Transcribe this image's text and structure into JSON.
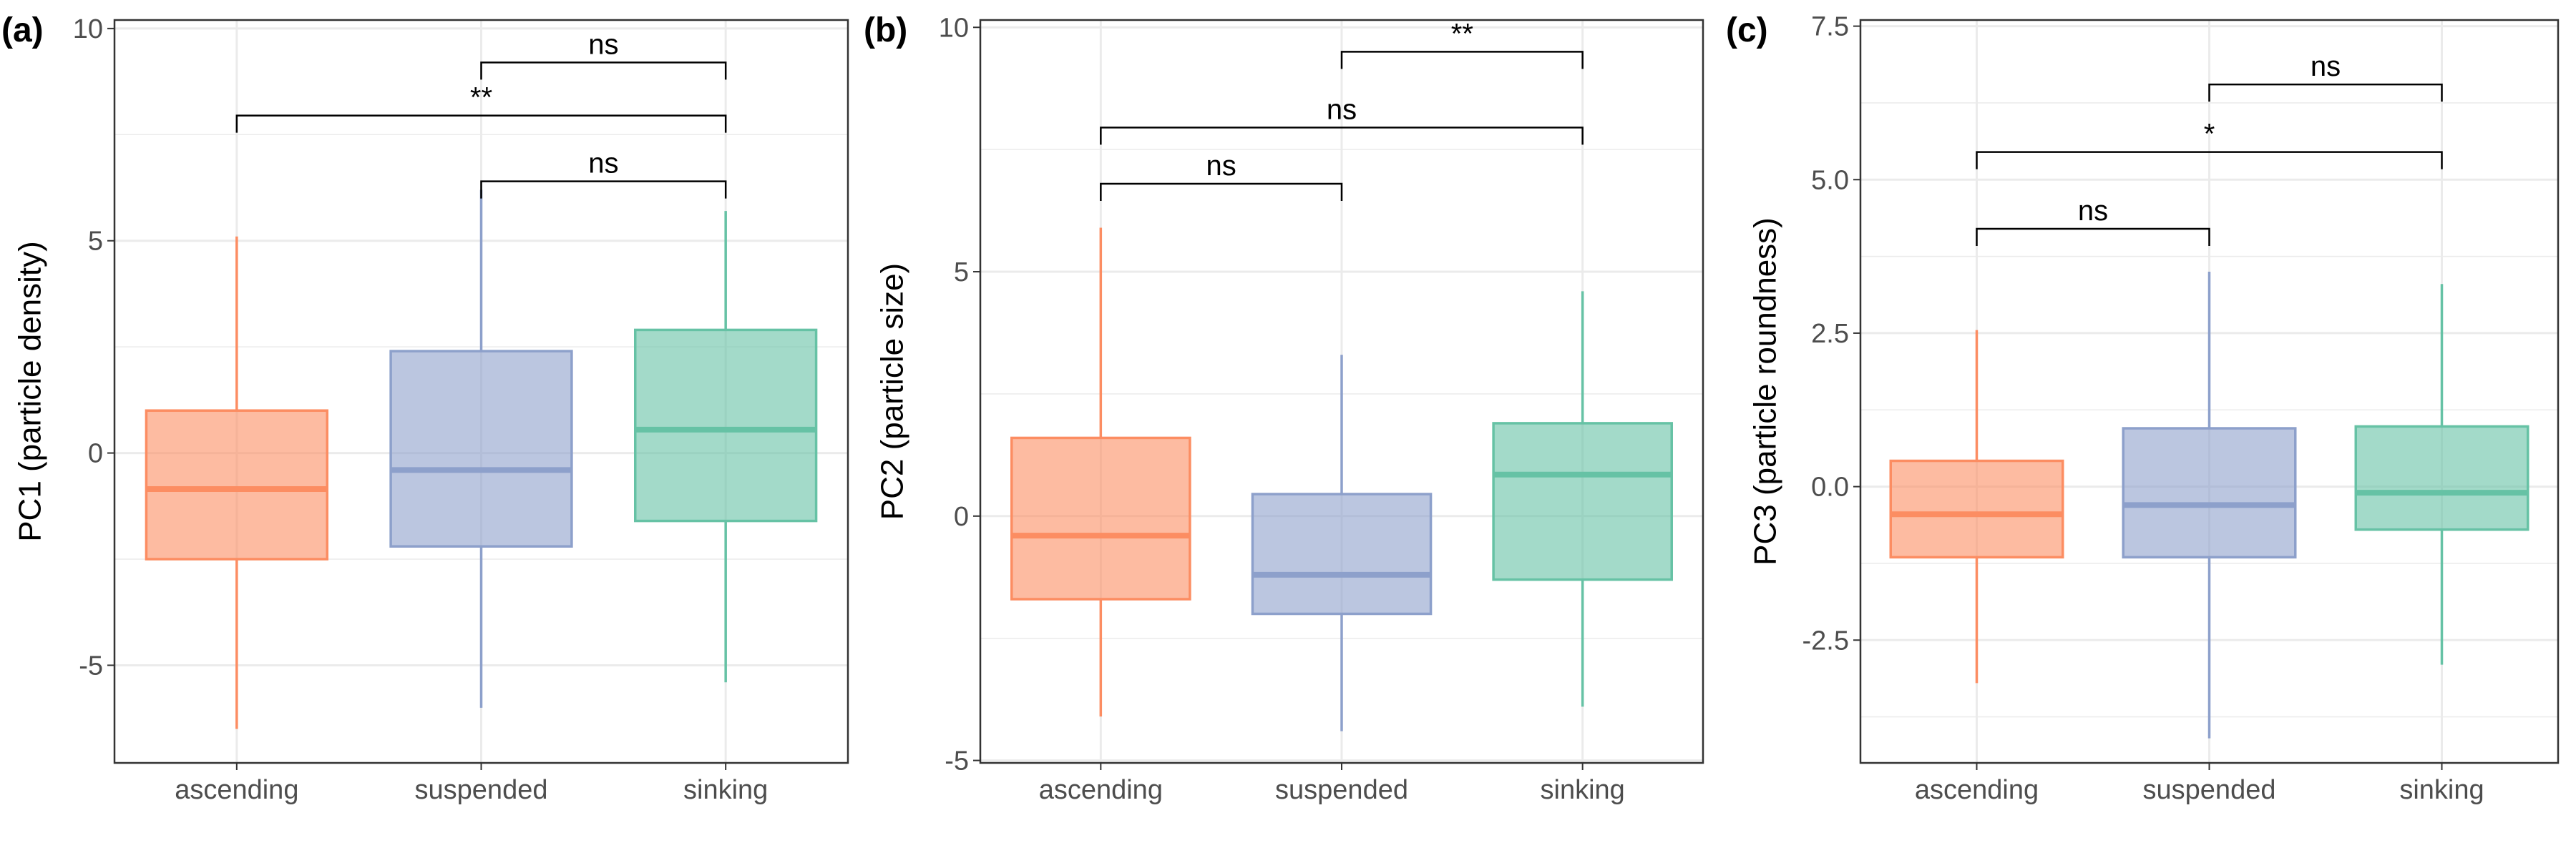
{
  "colors": {
    "ascending": "#FC8D62",
    "suspended": "#8DA0CB",
    "sinking": "#66C2A5",
    "grid": "#ebebeb",
    "border": "#333333"
  },
  "chart_data": [
    {
      "type": "box",
      "panel_label": "(a)",
      "ylabel": "PC1 (particle density)",
      "categories": [
        "ascending",
        "suspended",
        "sinking"
      ],
      "ylim": [
        -7.3,
        10.2
      ],
      "yticks": [
        -5,
        0,
        5,
        10
      ],
      "yticklabels": [
        "-5",
        "0",
        "5",
        "10"
      ],
      "grid": true,
      "boxes": [
        {
          "category": "ascending",
          "min": -6.5,
          "q1": -2.5,
          "median": -0.85,
          "q3": 1.0,
          "max": 5.1
        },
        {
          "category": "suspended",
          "min": -6.0,
          "q1": -2.2,
          "median": -0.4,
          "q3": 2.4,
          "max": 6.2
        },
        {
          "category": "sinking",
          "min": -5.4,
          "q1": -1.6,
          "median": 0.55,
          "q3": 2.9,
          "max": 5.7
        }
      ],
      "comparisons": [
        {
          "from": 1,
          "to": 2,
          "label": "ns",
          "y": 6.4
        },
        {
          "from": 0,
          "to": 2,
          "label": "**",
          "y": 7.95
        },
        {
          "from": 1,
          "to": 2,
          "label": "ns",
          "y": 9.2
        }
      ]
    },
    {
      "type": "box",
      "panel_label": "(b)",
      "ylabel": "PC2 (particle size)",
      "categories": [
        "ascending",
        "suspended",
        "sinking"
      ],
      "ylim": [
        -5.05,
        10.15
      ],
      "yticks": [
        -5,
        0,
        5,
        10
      ],
      "yticklabels": [
        "-5",
        "0",
        "5",
        "10"
      ],
      "grid": true,
      "boxes": [
        {
          "category": "ascending",
          "min": -4.1,
          "q1": -1.7,
          "median": -0.4,
          "q3": 1.6,
          "max": 5.9
        },
        {
          "category": "suspended",
          "min": -4.4,
          "q1": -2.0,
          "median": -1.2,
          "q3": 0.45,
          "max": 3.3
        },
        {
          "category": "sinking",
          "min": -3.9,
          "q1": -1.3,
          "median": 0.85,
          "q3": 1.9,
          "max": 4.6
        }
      ],
      "comparisons": [
        {
          "from": 0,
          "to": 1,
          "label": "ns",
          "y": 6.8
        },
        {
          "from": 0,
          "to": 2,
          "label": "ns",
          "y": 7.95
        },
        {
          "from": 1,
          "to": 2,
          "label": "**",
          "y": 9.5
        }
      ]
    },
    {
      "type": "box",
      "panel_label": "(c)",
      "ylabel": "PC3 (particle roundness)",
      "categories": [
        "ascending",
        "suspended",
        "sinking"
      ],
      "ylim": [
        -4.5,
        7.6
      ],
      "yticks": [
        -2.5,
        0,
        2.5,
        5,
        7.5
      ],
      "yticklabels": [
        "-2.5",
        "0.0",
        "2.5",
        "5.0",
        "7.5"
      ],
      "grid": true,
      "boxes": [
        {
          "category": "ascending",
          "min": -3.2,
          "q1": -1.15,
          "median": -0.45,
          "q3": 0.42,
          "max": 2.55
        },
        {
          "category": "suspended",
          "min": -4.1,
          "q1": -1.15,
          "median": -0.3,
          "q3": 0.95,
          "max": 3.5
        },
        {
          "category": "sinking",
          "min": -2.9,
          "q1": -0.7,
          "median": -0.1,
          "q3": 0.98,
          "max": 3.3
        }
      ],
      "comparisons": [
        {
          "from": 0,
          "to": 1,
          "label": "ns",
          "y": 4.2
        },
        {
          "from": 0,
          "to": 2,
          "label": "*",
          "y": 5.45
        },
        {
          "from": 1,
          "to": 2,
          "label": "ns",
          "y": 6.55
        }
      ]
    }
  ]
}
